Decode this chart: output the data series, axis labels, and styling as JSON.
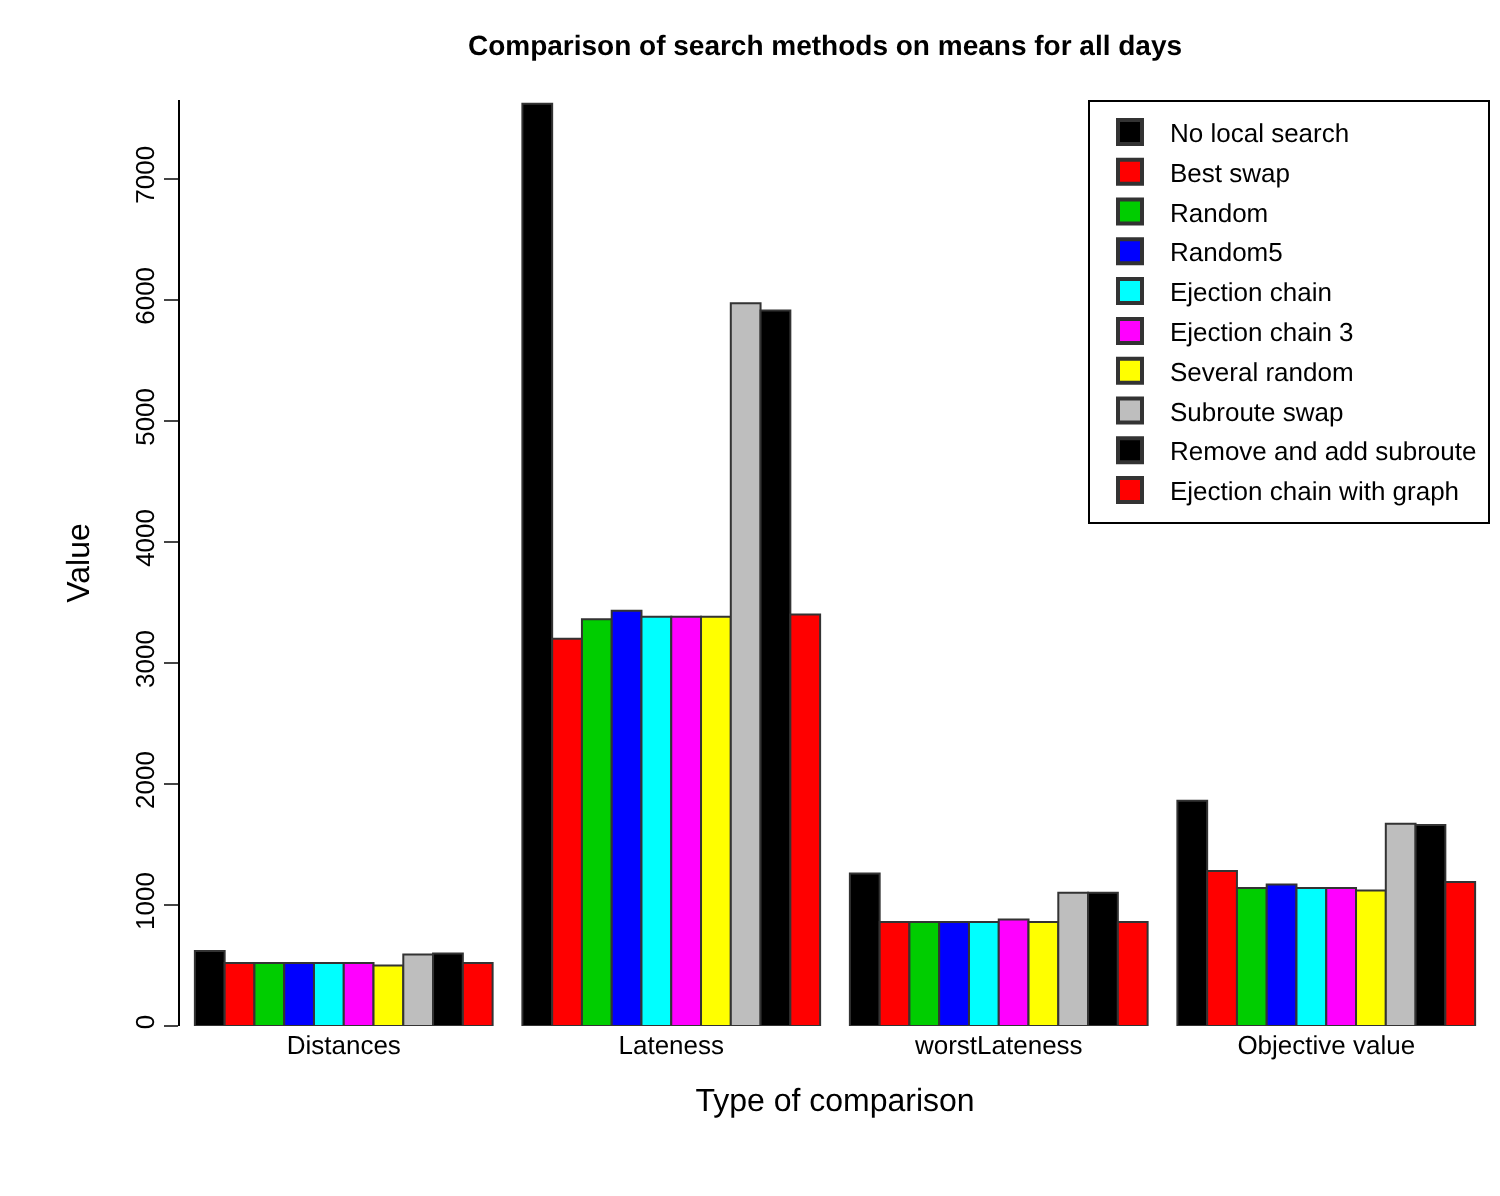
{
  "chart_data": {
    "type": "bar",
    "title": "Comparison of search methods on means for all days",
    "xlabel": "Type of comparison",
    "ylabel": "Value",
    "categories": [
      "Distances",
      "Lateness",
      "worstLateness",
      "Objective value"
    ],
    "series": [
      {
        "name": "No local search",
        "color": "#000000",
        "values": [
          620,
          7620,
          1260,
          1860
        ]
      },
      {
        "name": "Best swap",
        "color": "#ff0000",
        "values": [
          520,
          3200,
          860,
          1280
        ]
      },
      {
        "name": "Random",
        "color": "#00cd00",
        "values": [
          520,
          3360,
          860,
          1140
        ]
      },
      {
        "name": "Random5",
        "color": "#0000ff",
        "values": [
          520,
          3430,
          860,
          1170
        ]
      },
      {
        "name": "Ejection chain",
        "color": "#00ffff",
        "values": [
          520,
          3380,
          860,
          1140
        ]
      },
      {
        "name": "Ejection chain 3",
        "color": "#ff00ff",
        "values": [
          520,
          3380,
          880,
          1140
        ]
      },
      {
        "name": "Several random",
        "color": "#ffff00",
        "values": [
          500,
          3380,
          860,
          1120
        ]
      },
      {
        "name": "Subroute swap",
        "color": "#bebebe",
        "values": [
          590,
          5970,
          1100,
          1670
        ]
      },
      {
        "name": "Remove and add subroute",
        "color": "#000000",
        "values": [
          600,
          5910,
          1100,
          1660
        ]
      },
      {
        "name": "Ejection chain with graph",
        "color": "#ff0000",
        "values": [
          520,
          3400,
          860,
          1190
        ]
      }
    ],
    "ylim": [
      0,
      7650
    ],
    "yticks": [
      0,
      1000,
      2000,
      3000,
      4000,
      5000,
      6000,
      7000
    ],
    "legend": "top right"
  }
}
